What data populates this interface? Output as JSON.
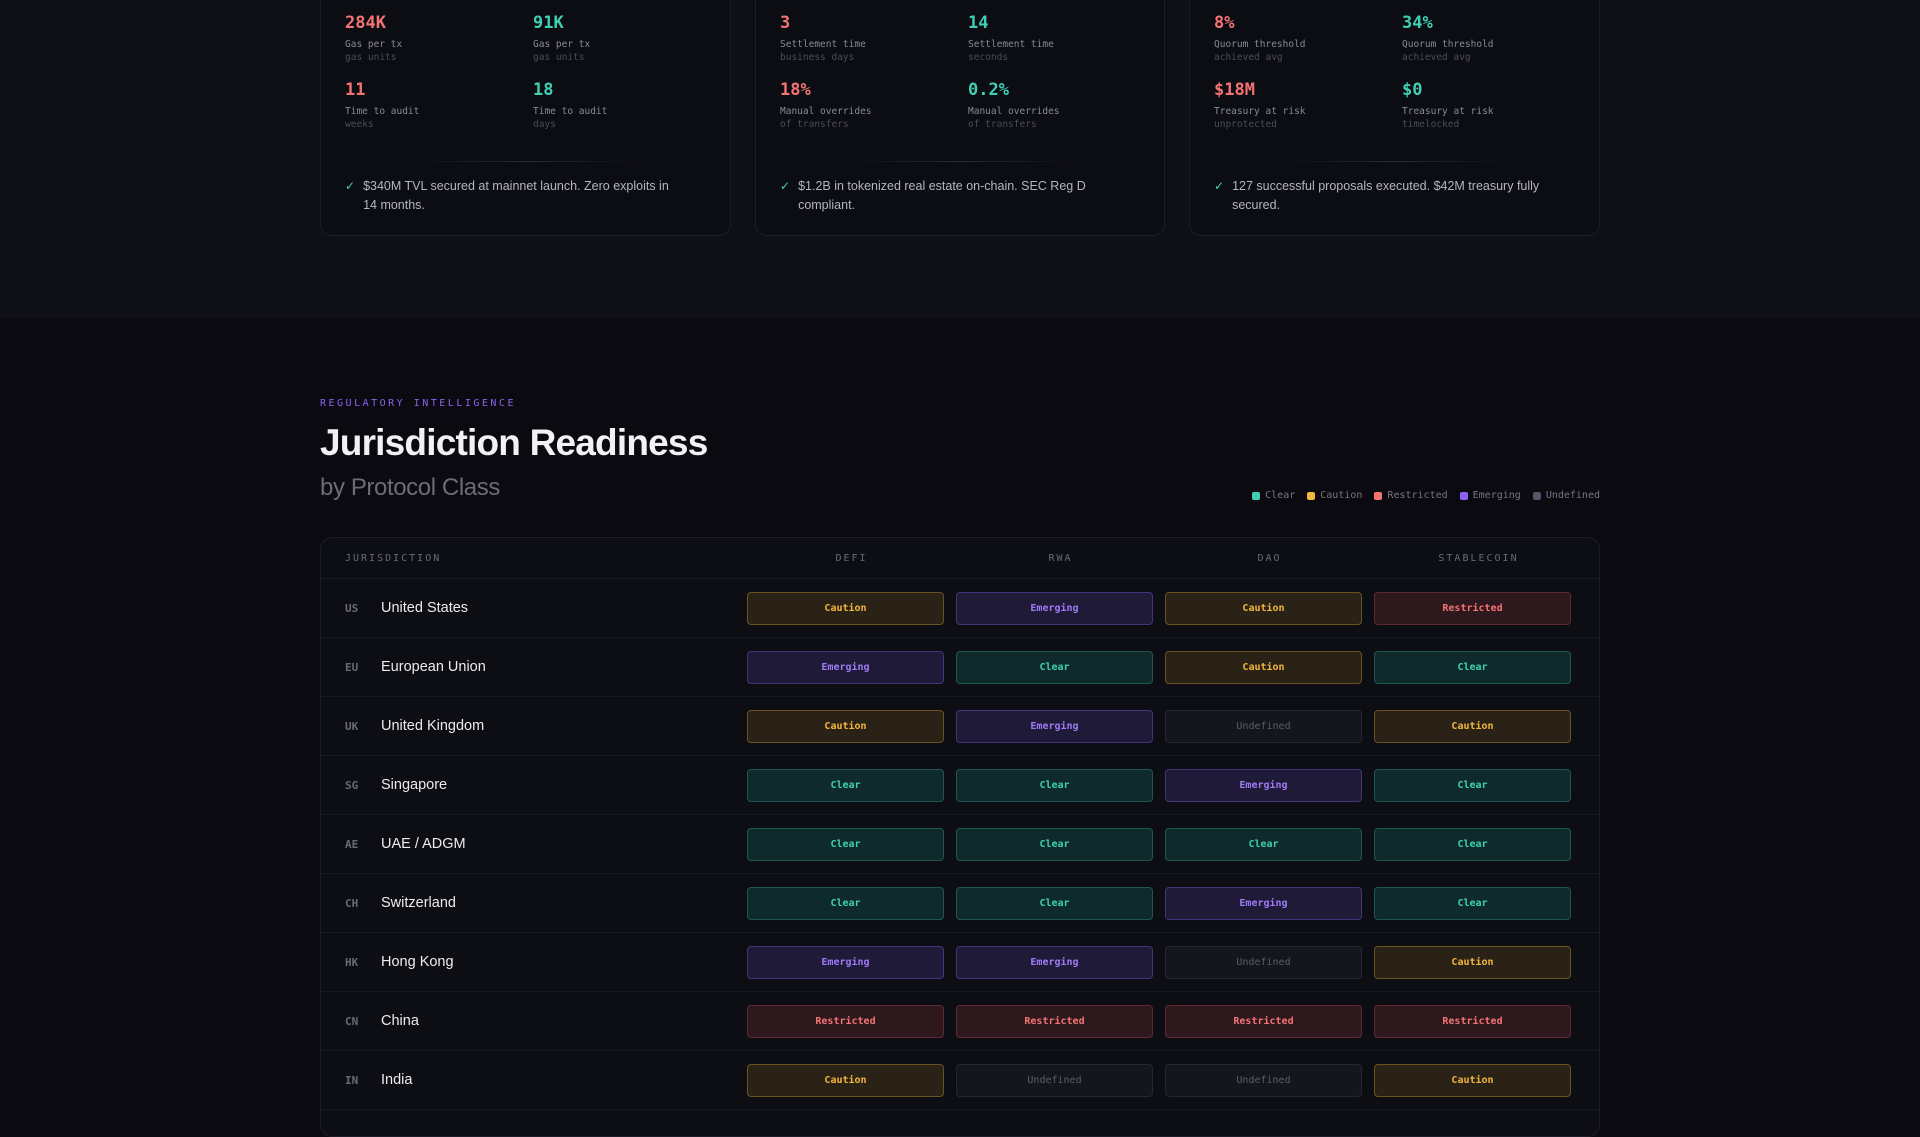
{
  "cards": [
    {
      "stats": [
        {
          "value": "284K",
          "label": "Gas per tx",
          "sub": "gas units",
          "tone": "bad"
        },
        {
          "value": "91K",
          "label": "Gas per tx",
          "sub": "gas units",
          "tone": "good"
        },
        {
          "value": "11",
          "label": "Time to audit",
          "sub": "weeks",
          "tone": "bad"
        },
        {
          "value": "18",
          "label": "Time to audit",
          "sub": "days",
          "tone": "good"
        }
      ],
      "outcome": "$340M TVL secured at mainnet launch. Zero exploits in 14 months."
    },
    {
      "stats": [
        {
          "value": "3",
          "label": "Settlement time",
          "sub": "business days",
          "tone": "bad"
        },
        {
          "value": "14",
          "label": "Settlement time",
          "sub": "seconds",
          "tone": "good"
        },
        {
          "value": "18%",
          "label": "Manual overrides",
          "sub": "of transfers",
          "tone": "bad"
        },
        {
          "value": "0.2%",
          "label": "Manual overrides",
          "sub": "of transfers",
          "tone": "good"
        }
      ],
      "outcome": "$1.2B in tokenized real estate on-chain. SEC Reg D compliant."
    },
    {
      "stats": [
        {
          "value": "8%",
          "label": "Quorum threshold",
          "sub": "achieved avg",
          "tone": "bad"
        },
        {
          "value": "34%",
          "label": "Quorum threshold",
          "sub": "achieved avg",
          "tone": "good"
        },
        {
          "value": "$18M",
          "label": "Treasury at risk",
          "sub": "unprotected",
          "tone": "bad"
        },
        {
          "value": "$0",
          "label": "Treasury at risk",
          "sub": "timelocked",
          "tone": "good"
        }
      ],
      "outcome": "127 successful proposals executed. $42M treasury fully secured."
    }
  ],
  "regulatory": {
    "eyebrow": "REGULATORY INTELLIGENCE",
    "title": "Jurisdiction Readiness",
    "subtitle": "by Protocol Class",
    "legend": [
      {
        "label": "Clear",
        "color": "#3fd0b3"
      },
      {
        "label": "Caution",
        "color": "#f2b63d"
      },
      {
        "label": "Restricted",
        "color": "#f47373"
      },
      {
        "label": "Emerging",
        "color": "#8b63f2"
      },
      {
        "label": "Undefined",
        "color": "#55556a"
      }
    ],
    "columns": [
      "JURISDICTION",
      "DEFI",
      "RWA",
      "DAO",
      "STABLECOIN"
    ],
    "rows": [
      {
        "code": "US",
        "name": "United States",
        "cells": [
          "Caution",
          "Emerging",
          "Caution",
          "Restricted"
        ]
      },
      {
        "code": "EU",
        "name": "European Union",
        "cells": [
          "Emerging",
          "Clear",
          "Caution",
          "Clear"
        ]
      },
      {
        "code": "UK",
        "name": "United Kingdom",
        "cells": [
          "Caution",
          "Emerging",
          "Undefined",
          "Caution"
        ]
      },
      {
        "code": "SG",
        "name": "Singapore",
        "cells": [
          "Clear",
          "Clear",
          "Emerging",
          "Clear"
        ]
      },
      {
        "code": "AE",
        "name": "UAE / ADGM",
        "cells": [
          "Clear",
          "Clear",
          "Clear",
          "Clear"
        ]
      },
      {
        "code": "CH",
        "name": "Switzerland",
        "cells": [
          "Clear",
          "Clear",
          "Emerging",
          "Clear"
        ]
      },
      {
        "code": "HK",
        "name": "Hong Kong",
        "cells": [
          "Emerging",
          "Emerging",
          "Undefined",
          "Caution"
        ]
      },
      {
        "code": "CN",
        "name": "China",
        "cells": [
          "Restricted",
          "Restricted",
          "Restricted",
          "Restricted"
        ]
      },
      {
        "code": "IN",
        "name": "India",
        "cells": [
          "Caution",
          "Undefined",
          "Undefined",
          "Caution"
        ]
      }
    ]
  }
}
